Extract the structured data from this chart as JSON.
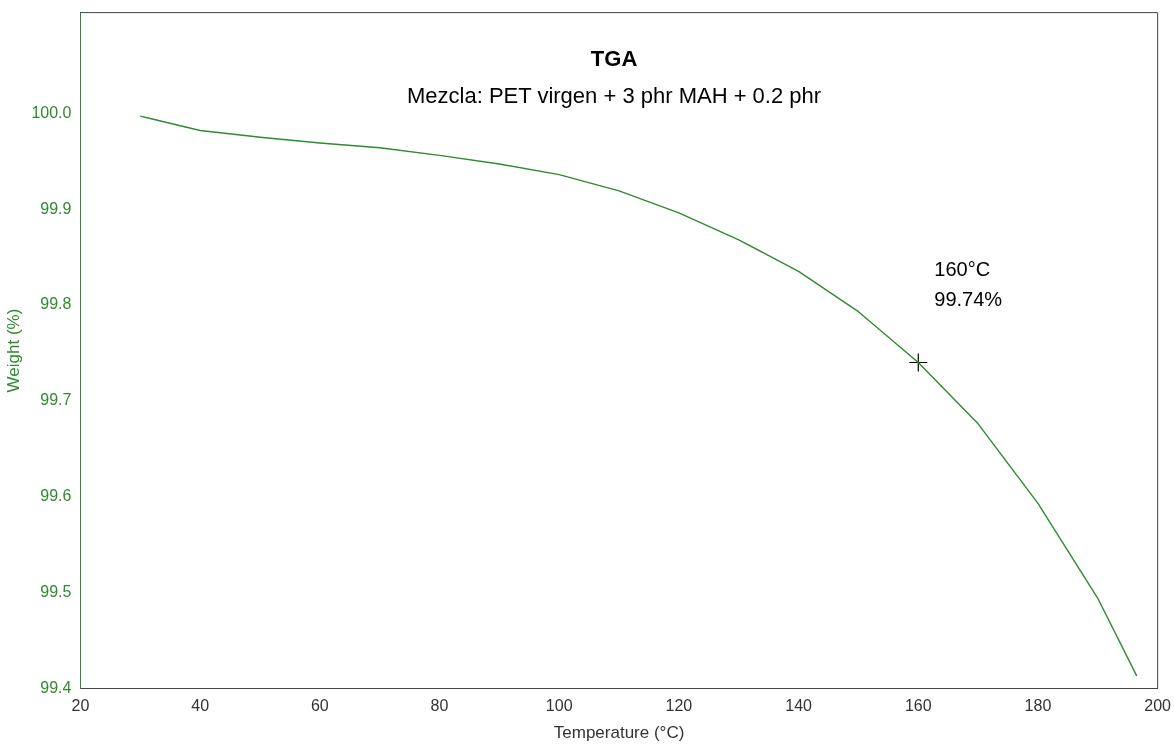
{
  "chart_data": {
    "type": "line",
    "title": "TGA",
    "subtitle": "Mezcla: PET virgen + 3 phr MAH + 0.2 phr",
    "xlabel": "Temperature (°C)",
    "ylabel": "Weight (%)",
    "xlim": [
      20,
      200
    ],
    "xticks": [
      20,
      40,
      60,
      80,
      100,
      120,
      140,
      160,
      180,
      200
    ],
    "ylim": [
      99.4,
      100.105
    ],
    "yticks": [
      99.4,
      99.5,
      99.6,
      99.7,
      99.8,
      99.9,
      {
        "value": 100,
        "label": "100.0"
      }
    ],
    "grid": false,
    "legend": false,
    "marker": "none",
    "line_style": "solid",
    "series": [
      {
        "color": "#2e8b2e",
        "x": [
          30,
          32,
          40,
          50,
          60,
          70,
          80,
          90,
          100,
          110,
          120,
          130,
          140,
          150,
          160,
          170,
          180,
          190,
          196.5
        ],
        "values": [
          99.997,
          99.994,
          99.982,
          99.975,
          99.969,
          99.964,
          99.956,
          99.947,
          99.936,
          99.919,
          99.896,
          99.868,
          99.835,
          99.793,
          99.74,
          99.676,
          99.593,
          99.494,
          99.413
        ]
      },
      {
        "type": "scatter",
        "marker": "cross",
        "color": "#000000",
        "x": [
          160
        ],
        "values": [
          99.74
        ]
      }
    ],
    "annotations": [
      {
        "text": "160°C\n99.74%",
        "x": 160,
        "y": 99.74
      }
    ]
  }
}
